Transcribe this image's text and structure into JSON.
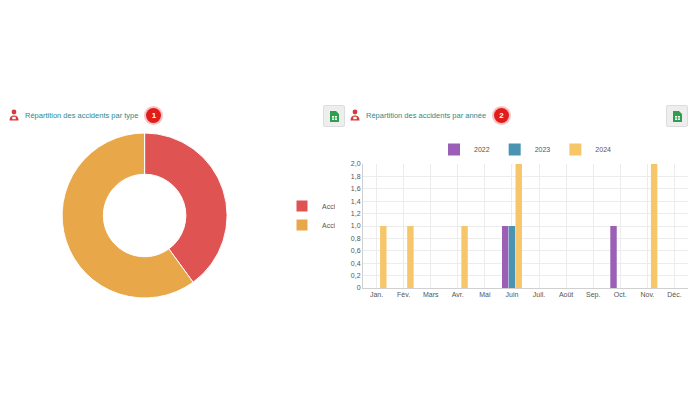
{
  "chart_data": [
    {
      "type": "donut",
      "title": "Répartition des accidents par type",
      "annotations": [
        "1"
      ],
      "categories": [
        "Accident du travail",
        "Accident trajet"
      ],
      "values": [
        4,
        6
      ],
      "colors": [
        "#e05353",
        "#e8a84a"
      ],
      "legend": "right"
    },
    {
      "type": "bar",
      "title": "Répartition des accidents par année",
      "annotations": [
        "2"
      ],
      "categories": [
        "Jan.",
        "Fév.",
        "Mars",
        "Avr.",
        "Mai",
        "Juin",
        "Juil.",
        "Août",
        "Sep.",
        "Oct.",
        "Nov.",
        "Déc."
      ],
      "series": [
        {
          "name": "2022",
          "color": "#9b5fb5",
          "values": [
            0,
            0,
            0,
            0,
            0,
            1,
            0,
            0,
            0,
            1,
            0,
            0
          ]
        },
        {
          "name": "2023",
          "color": "#4a93b3",
          "values": [
            0,
            0,
            0,
            0,
            0,
            1,
            0,
            0,
            0,
            0,
            0,
            0
          ]
        },
        {
          "name": "2024",
          "color": "#f7c56a",
          "values": [
            1,
            1,
            0,
            1,
            0,
            2,
            0,
            0,
            0,
            0,
            2,
            0
          ]
        }
      ],
      "ylim": [
        0,
        2
      ],
      "yticks": [
        0,
        {
          "value": 0.2,
          "label": "0,2"
        },
        {
          "value": 0.4,
          "label": "0,4"
        },
        {
          "value": 0.6,
          "label": "0,6"
        },
        {
          "value": 0.8,
          "label": "0,8"
        },
        {
          "value": 1,
          "label": "1,0"
        },
        {
          "value": 1.2,
          "label": "1,2"
        },
        {
          "value": 1.4,
          "label": "1,4"
        },
        {
          "value": 1.6,
          "label": "1,6"
        },
        {
          "value": 1.8,
          "label": "1,8"
        },
        {
          "value": 2,
          "label": "2,0"
        }
      ],
      "grid": true,
      "legend": "top"
    }
  ]
}
